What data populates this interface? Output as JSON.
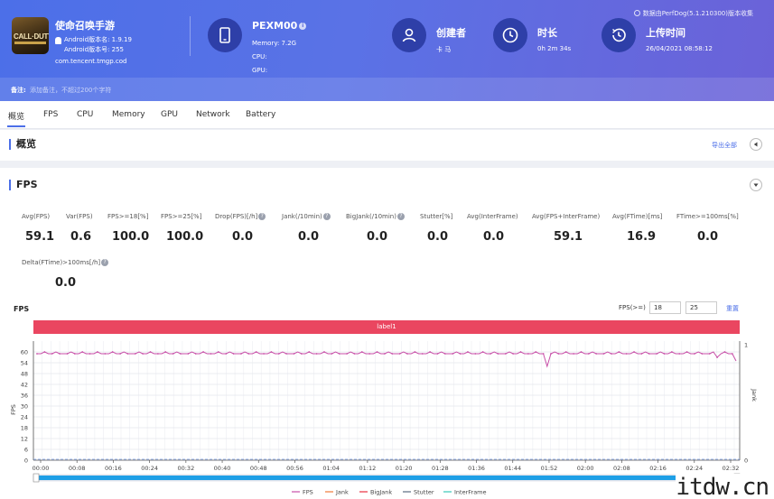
{
  "header": {
    "app_name": "使命召唤手游",
    "app_icon_text": "CALL·DUTY",
    "android_version_name": "Android版本名: 1.9.19",
    "android_version_code": "Android版本号: 255",
    "package": "com.tencent.tmgp.cod",
    "device": {
      "model": "PEXM00",
      "memory": "Memory: 7.2G",
      "cpu": "CPU:",
      "gpu": "GPU:"
    },
    "creator": {
      "title": "创建者",
      "value": "卡 马"
    },
    "duration": {
      "title": "时长",
      "value": "0h 2m 34s"
    },
    "upload": {
      "title": "上传时间",
      "value": "26/04/2021 08:58:12"
    },
    "version_note": "数据由PerfDog(5.1.210300)版本收集",
    "notes_label": "备注:",
    "notes_placeholder": "添加备注，不超过200个字符"
  },
  "tabs": [
    "概览",
    "FPS",
    "CPU",
    "Memory",
    "GPU",
    "Network",
    "Battery"
  ],
  "overview": {
    "title": "概览",
    "export_label": "导出全部"
  },
  "fps_section": {
    "title": "FPS",
    "metrics_row1": [
      {
        "label": "Avg(FPS)",
        "value": "59.1",
        "help": false
      },
      {
        "label": "Var(FPS)",
        "value": "0.6",
        "help": false
      },
      {
        "label": "FPS>=18[%]",
        "value": "100.0",
        "help": false
      },
      {
        "label": "FPS>=25[%]",
        "value": "100.0",
        "help": false
      },
      {
        "label": "Drop(FPS)[/h]",
        "value": "0.0",
        "help": true
      },
      {
        "label": "Jank(/10min)",
        "value": "0.0",
        "help": true
      },
      {
        "label": "BigJank(/10min)",
        "value": "0.0",
        "help": true
      },
      {
        "label": "Stutter[%]",
        "value": "0.0",
        "help": false
      },
      {
        "label": "Avg(InterFrame)",
        "value": "0.0",
        "help": false
      },
      {
        "label": "Avg(FPS+InterFrame)",
        "value": "59.1",
        "help": false
      },
      {
        "label": "Avg(FTime)[ms]",
        "value": "16.9",
        "help": false
      },
      {
        "label": "FTime>=100ms[%]",
        "value": "0.0",
        "help": false
      }
    ],
    "metrics_row2": [
      {
        "label": "Delta(FTime)>100ms[/h]",
        "value": "0.0",
        "help": true
      }
    ]
  },
  "chart_controls": {
    "title": "FPS",
    "threshold_label": "FPS(>=)",
    "threshold1": "18",
    "threshold2": "25",
    "reset_label": "重置",
    "label_bar": "label1"
  },
  "chart_data": {
    "type": "line",
    "ylabel": "FPS",
    "ylabel_right": "Jank",
    "ylim": [
      0,
      66
    ],
    "yticks": [
      0,
      6,
      12,
      18,
      24,
      30,
      36,
      42,
      48,
      54,
      60
    ],
    "y2ticks": [
      0,
      1
    ],
    "x_tick_labels": [
      "00:00",
      "00:08",
      "00:16",
      "00:24",
      "00:32",
      "00:40",
      "00:48",
      "00:56",
      "01:04",
      "01:12",
      "01:20",
      "01:28",
      "01:36",
      "01:44",
      "01:52",
      "02:00",
      "02:08",
      "02:16",
      "02:24",
      "02:32"
    ],
    "grid": true,
    "legend": [
      "FPS",
      "Jank",
      "BigJank",
      "Stutter",
      "InterFrame"
    ],
    "legend_colors": [
      "#c84fa8",
      "#f07a3a",
      "#ea3040",
      "#5a6a80",
      "#3ac8b8"
    ],
    "series": [
      {
        "name": "FPS",
        "color": "#c84fa8",
        "values": [
          59,
          59,
          60,
          59,
          59,
          60,
          59,
          59,
          59,
          60,
          59,
          59,
          60,
          59,
          59,
          59,
          60,
          59,
          59,
          59,
          60,
          59,
          59,
          60,
          59,
          59,
          59,
          60,
          59,
          59,
          60,
          59,
          59,
          59,
          60,
          59,
          59,
          60,
          59,
          59,
          59,
          60,
          59,
          59,
          60,
          59,
          59,
          59,
          60,
          59,
          59,
          60,
          59,
          59,
          59,
          60,
          59,
          59,
          60,
          59,
          59,
          59,
          60,
          59,
          59,
          60,
          59,
          59,
          59,
          60,
          59,
          59,
          60,
          59,
          59,
          59,
          60,
          59,
          59,
          60,
          59,
          59,
          59,
          60,
          59,
          59,
          60,
          59,
          59,
          59,
          60,
          59,
          59,
          60,
          59,
          59,
          59,
          60,
          59,
          59,
          60,
          59,
          59,
          59,
          60,
          59,
          59,
          60,
          59,
          59,
          59,
          60,
          59,
          59,
          60,
          59,
          59,
          59,
          60,
          59,
          59,
          60,
          59,
          59,
          59,
          60,
          59,
          59,
          60,
          59,
          59,
          59,
          60,
          59,
          59,
          52,
          59,
          60,
          59,
          59,
          60,
          59,
          59,
          59,
          60,
          59,
          59,
          60,
          59,
          59,
          59,
          60,
          59,
          59,
          60,
          59,
          59,
          59,
          60,
          59,
          59,
          60,
          59,
          59,
          59,
          60,
          59,
          59,
          60,
          59,
          59,
          59,
          60,
          59,
          59,
          60,
          59,
          59,
          59,
          60,
          57,
          59,
          60,
          59,
          59,
          55
        ]
      },
      {
        "name": "Jank",
        "color": "#f07a3a",
        "values": []
      },
      {
        "name": "BigJank",
        "color": "#ea3040",
        "values": []
      },
      {
        "name": "Stutter",
        "color": "#5a6a80",
        "values": []
      },
      {
        "name": "InterFrame",
        "color": "#3ac8b8",
        "values": []
      }
    ]
  },
  "watermark": "itdw.cn"
}
